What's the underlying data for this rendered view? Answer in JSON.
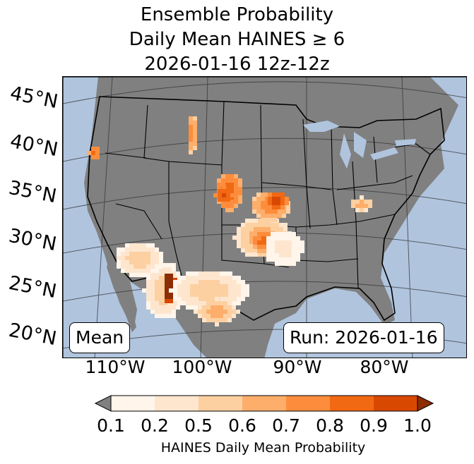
{
  "title": {
    "line1": "Ensemble Probability",
    "line2": "Daily Mean HAINES ≥ 6",
    "line3": "2026-01-16 12z-12z"
  },
  "map": {
    "ocean_color": "#b0c4de",
    "land_color": "#808080",
    "lat_labels": [
      "45°N",
      "40°N",
      "35°N",
      "30°N",
      "25°N",
      "20°N"
    ],
    "lon_labels": [
      "110°W",
      "100°W",
      "90°W",
      "80°W"
    ],
    "stat_label": "Mean",
    "run_label": "Run: 2026-01-16"
  },
  "colorbar": {
    "ticks": [
      "0.1",
      "0.2",
      "0.5",
      "0.6",
      "0.7",
      "0.8",
      "0.9",
      "1.0"
    ],
    "colors": [
      "#fff5eb",
      "#fee6ce",
      "#fdd0a2",
      "#fdae6b",
      "#fd8d3c",
      "#f16913",
      "#d94801",
      "#8c2d04"
    ],
    "under_color": "#808080",
    "label": "HAINES Daily Mean Probability"
  }
}
